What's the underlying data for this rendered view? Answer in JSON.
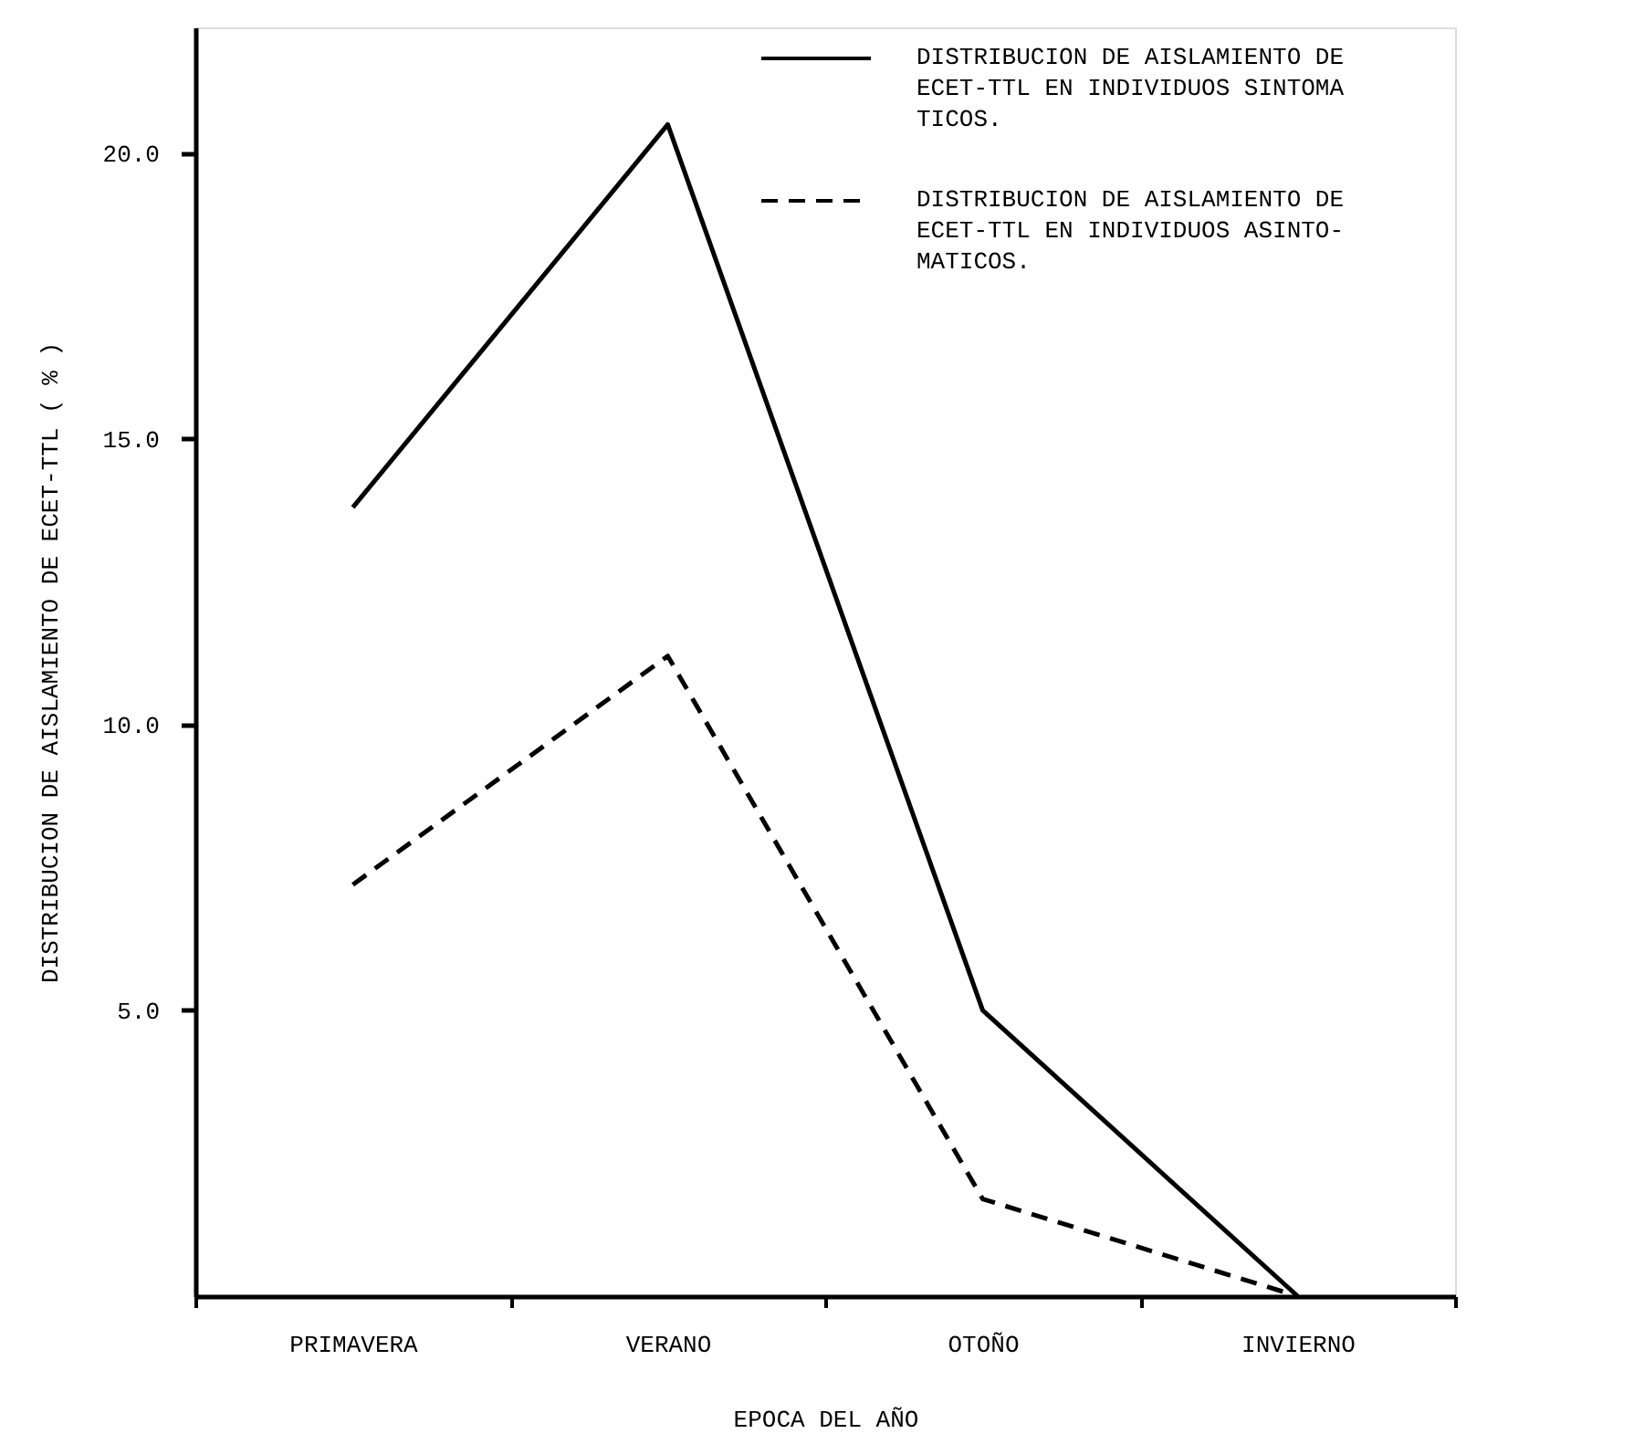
{
  "chart_data": {
    "type": "line",
    "xlabel": "EPOCA DEL AÑO",
    "ylabel": "DISTRIBUCION DE AISLAMIENTO DE ECET-TTL ( % )",
    "categories": [
      "PRIMAVERA",
      "VERANO",
      "OTOÑO",
      "INVIERNO"
    ],
    "series": [
      {
        "name": "DISTRIBUCION DE AISLAMIENTO DE\nECET-TTL EN INDIVIDUOS SINTOMA\nTICOS.",
        "color": "#000000",
        "line_style": "solid",
        "values": [
          13.8,
          20.5,
          5.0,
          0
        ]
      },
      {
        "name": "DISTRIBUCION DE AISLAMIENTO DE\nECET-TTL EN INDIVIDUOS ASINTO-\nMATICOS.",
        "color": "#000000",
        "line_style": "dashed",
        "values": [
          7.2,
          11.2,
          1.7,
          0
        ]
      }
    ],
    "ylim": [
      0,
      22.2
    ],
    "yticks": [
      {
        "value": 5,
        "label": "5.0"
      },
      {
        "value": 10,
        "label": "10.0"
      },
      {
        "value": 15,
        "label": "15.0"
      },
      {
        "value": 20,
        "label": "20.0"
      }
    ],
    "grid": false,
    "legend": "top right",
    "marker": "none"
  }
}
